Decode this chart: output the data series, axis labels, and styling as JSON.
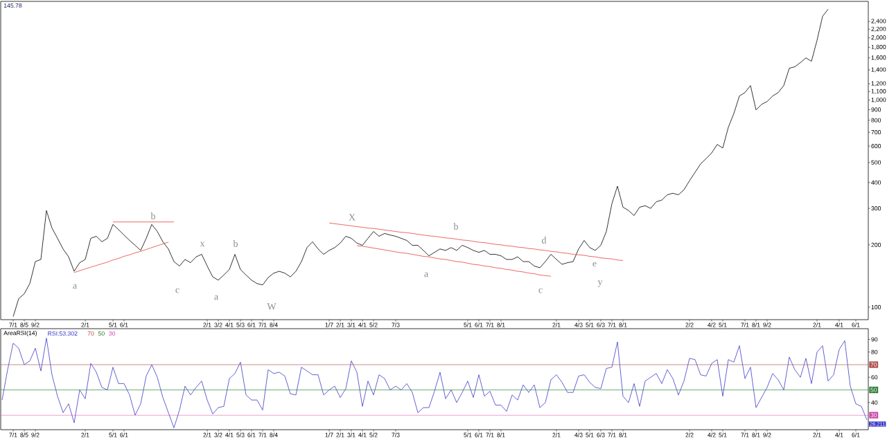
{
  "chart_data": [
    {
      "type": "line",
      "title": "145.78",
      "log": true,
      "ylim": [
        87,
        3000
      ],
      "categories": [
        null,
        null,
        "7/1",
        null,
        "8/5",
        null,
        "9/2",
        null,
        null,
        null,
        null,
        null,
        null,
        null,
        null,
        "2/1",
        null,
        null,
        null,
        null,
        "5/1",
        null,
        "6/1",
        null,
        null,
        null,
        null,
        null,
        null,
        null,
        null,
        null,
        null,
        null,
        null,
        null,
        null,
        "2/1",
        null,
        "3/2",
        null,
        "4/1",
        null,
        "5/3",
        null,
        "6/1",
        null,
        "7/1",
        null,
        "8/4",
        null,
        null,
        null,
        null,
        null,
        null,
        null,
        null,
        null,
        "1/7",
        null,
        "2/1",
        null,
        "3/1",
        null,
        "4/1",
        null,
        "5/2",
        null,
        null,
        null,
        "7/3",
        null,
        null,
        null,
        null,
        null,
        null,
        null,
        null,
        null,
        null,
        null,
        null,
        "5/1",
        null,
        "6/1",
        null,
        "7/1",
        null,
        "8/1",
        null,
        null,
        null,
        null,
        null,
        null,
        null,
        null,
        null,
        "2/1",
        null,
        null,
        null,
        "4/3",
        null,
        "5/1",
        null,
        "6/3",
        null,
        "7/1",
        null,
        "8/1",
        null,
        null,
        null,
        null,
        null,
        null,
        null,
        null,
        null,
        null,
        null,
        "2/2",
        null,
        null,
        null,
        "4/2",
        null,
        "5/1",
        null,
        null,
        null,
        "7/1",
        null,
        "8/1",
        null,
        "9/2",
        null,
        null,
        null,
        null,
        null,
        null,
        null,
        null,
        "2/1",
        null,
        null,
        null,
        "4/1",
        null,
        null,
        "6/1",
        null,
        null
      ],
      "yticks": [
        100,
        200,
        300,
        400,
        500,
        600,
        700,
        800,
        900,
        {
          "value": 1000,
          "label": "1,000"
        },
        {
          "value": 1100,
          "label": "1,100"
        },
        {
          "value": 1200,
          "label": "1,200"
        },
        {
          "value": 1400,
          "label": "1,400"
        },
        {
          "value": 1600,
          "label": "1,600"
        },
        {
          "value": 1800,
          "label": "1,800"
        },
        {
          "value": 2000,
          "label": "2,000"
        },
        {
          "value": 2200,
          "label": "2,200"
        },
        {
          "value": 2400,
          "label": "2,400"
        }
      ],
      "series": [
        {
          "color": "#000000",
          "values": [
            null,
            null,
            90,
            110,
            116,
            130,
            166,
            170,
            293,
            241,
            215,
            191,
            175,
            149,
            164,
            170,
            215,
            220,
            207,
            215,
            251,
            237,
            223,
            210,
            199,
            188,
            215,
            251,
            232,
            207,
            191,
            166,
            158,
            170,
            164,
            175,
            180,
            158,
            140,
            135,
            143,
            152,
            180,
            152,
            143,
            135,
            130,
            128,
            139,
            146,
            149,
            146,
            140,
            149,
            166,
            194,
            207,
            191,
            180,
            188,
            194,
            204,
            220,
            215,
            204,
            199,
            215,
            232,
            220,
            227,
            223,
            220,
            215,
            210,
            199,
            199,
            188,
            177,
            184,
            191,
            188,
            194,
            188,
            199,
            194,
            188,
            184,
            188,
            180,
            180,
            177,
            170,
            170,
            175,
            166,
            166,
            158,
            155,
            166,
            180,
            170,
            161,
            164,
            166,
            191,
            210,
            194,
            188,
            199,
            232,
            316,
            384,
            304,
            293,
            277,
            304,
            309,
            300,
            323,
            329,
            349,
            355,
            349,
            369,
            408,
            448,
            492,
            522,
            556,
            611,
            587,
            739,
            862,
            1047,
            1088,
            1176,
            897,
            954,
            985,
            1047,
            1088,
            1176,
            1426,
            1450,
            1518,
            1600,
            1541,
            1944,
            2540,
            2750,
            null,
            null,
            null,
            null,
            null,
            null,
            null
          ]
        },
        {
          "type": "line",
          "color": "#e8413c",
          "values": [
            null,
            null,
            null,
            null,
            null,
            null,
            null,
            null,
            null,
            null,
            null,
            null,
            null,
            147,
            150,
            153,
            156,
            159,
            162,
            165,
            169,
            172,
            176,
            179,
            183,
            186,
            190,
            194,
            198,
            202,
            206,
            null,
            null,
            null,
            null,
            null,
            null,
            null,
            null,
            null,
            null,
            null,
            null,
            null,
            null,
            null,
            null,
            null,
            null,
            null,
            null,
            null,
            null,
            null,
            null,
            null,
            null,
            null,
            null,
            null,
            null,
            null,
            null,
            null,
            null,
            null,
            null,
            null,
            null,
            null,
            null,
            null,
            null,
            null,
            null,
            null,
            null,
            null,
            null,
            null,
            null,
            null,
            null,
            null,
            null,
            null,
            null,
            null,
            null,
            null,
            null,
            null,
            null,
            null,
            null,
            null,
            null,
            null,
            null,
            null,
            null,
            null,
            null,
            null,
            null,
            null,
            null,
            null,
            null,
            null,
            null,
            null,
            null,
            null,
            null,
            null,
            null,
            null,
            null,
            null,
            null,
            null,
            null,
            null,
            null,
            null,
            null,
            null,
            null,
            null,
            null,
            null,
            null,
            null,
            null,
            null,
            null,
            null,
            null,
            null,
            null,
            null,
            null,
            null,
            null,
            null,
            null,
            null,
            null,
            null,
            null,
            null,
            null,
            null,
            null,
            null,
            null
          ]
        },
        {
          "type": "line",
          "color": "#e8413c",
          "values": [
            null,
            null,
            null,
            null,
            null,
            null,
            null,
            null,
            null,
            null,
            null,
            null,
            null,
            null,
            null,
            null,
            null,
            null,
            null,
            null,
            258,
            258,
            258,
            258,
            258,
            258,
            258,
            258,
            258,
            258,
            258,
            258,
            null,
            null,
            null,
            null,
            null,
            null,
            null,
            null,
            null,
            null,
            null,
            null,
            null,
            null,
            null,
            null,
            null,
            null,
            null,
            null,
            null,
            null,
            null,
            null,
            null,
            null,
            null,
            null,
            null,
            null,
            null,
            null,
            null,
            null,
            null,
            null,
            null,
            null,
            null,
            null,
            null,
            null,
            null,
            null,
            null,
            null,
            null,
            null,
            null,
            null,
            null,
            null,
            null,
            null,
            null,
            null,
            null,
            null,
            null,
            null,
            null,
            null,
            null,
            null,
            null,
            null,
            null,
            null,
            null,
            null,
            null,
            null,
            null,
            null,
            null,
            null,
            null,
            null,
            null,
            null,
            null,
            null,
            null,
            null,
            null,
            null,
            null,
            null,
            null,
            null,
            null,
            null,
            null,
            null,
            null,
            null,
            null,
            null,
            null,
            null,
            null,
            null,
            null,
            null,
            null,
            null,
            null,
            null,
            null,
            null,
            null,
            null,
            null,
            null,
            null,
            null,
            null,
            null,
            null,
            null,
            null,
            null,
            null,
            null,
            null
          ]
        },
        {
          "type": "line",
          "color": "#e8413c",
          "values": [
            null,
            null,
            null,
            null,
            null,
            null,
            null,
            null,
            null,
            null,
            null,
            null,
            null,
            null,
            null,
            null,
            null,
            null,
            null,
            null,
            null,
            null,
            null,
            null,
            null,
            null,
            null,
            null,
            null,
            null,
            null,
            null,
            null,
            null,
            null,
            null,
            null,
            null,
            null,
            null,
            null,
            null,
            null,
            null,
            null,
            null,
            null,
            null,
            null,
            null,
            null,
            null,
            null,
            null,
            null,
            null,
            null,
            null,
            null,
            255,
            253,
            251,
            249,
            247,
            245,
            243,
            241,
            240,
            238,
            236,
            234,
            232,
            230,
            229,
            227,
            225,
            223,
            221,
            220,
            218,
            216,
            215,
            213,
            211,
            210,
            208,
            206,
            205,
            203,
            201,
            200,
            198,
            197,
            195,
            194,
            192,
            191,
            189,
            188,
            186,
            185,
            183,
            182,
            180,
            179,
            178,
            176,
            175,
            173,
            172,
            171,
            169,
            168,
            null,
            null,
            null,
            null,
            null,
            null,
            null,
            null,
            null,
            null,
            null,
            null,
            null,
            null,
            null,
            null,
            null,
            null,
            null,
            null,
            null,
            null,
            null,
            null,
            null,
            null,
            null,
            null,
            null,
            null,
            null,
            null,
            null,
            null,
            null,
            null,
            null,
            null,
            null,
            null,
            null,
            null,
            null,
            null
          ]
        },
        {
          "type": "line",
          "color": "#e8413c",
          "values": [
            null,
            null,
            null,
            null,
            null,
            null,
            null,
            null,
            null,
            null,
            null,
            null,
            null,
            null,
            null,
            null,
            null,
            null,
            null,
            null,
            null,
            null,
            null,
            null,
            null,
            null,
            null,
            null,
            null,
            null,
            null,
            null,
            null,
            null,
            null,
            null,
            null,
            null,
            null,
            null,
            null,
            null,
            null,
            null,
            null,
            null,
            null,
            null,
            null,
            null,
            null,
            null,
            null,
            null,
            null,
            null,
            null,
            null,
            null,
            null,
            null,
            null,
            null,
            null,
            198,
            197,
            195,
            193,
            191,
            189,
            187,
            185,
            183,
            182,
            180,
            178,
            176,
            175,
            173,
            171,
            170,
            168,
            166,
            165,
            163,
            161,
            160,
            158,
            157,
            155,
            154,
            152,
            151,
            149,
            148,
            146,
            145,
            143,
            142,
            141,
            null,
            null,
            null,
            null,
            null,
            null,
            null,
            null,
            null,
            null,
            null,
            null,
            null,
            null,
            null,
            null,
            null,
            null,
            null,
            null,
            null,
            null,
            null,
            null,
            null,
            null,
            null,
            null,
            null,
            null,
            null,
            null,
            null,
            null,
            null,
            null,
            null,
            null,
            null,
            null,
            null,
            null,
            null,
            null,
            null,
            null,
            null,
            null,
            null,
            null,
            null,
            null,
            null,
            null,
            null,
            null,
            null
          ]
        }
      ],
      "annotations": [
        "a",
        "b",
        "c",
        "x",
        "a",
        "b",
        "W",
        "X",
        "a",
        "b",
        "c",
        "d",
        "e",
        "y"
      ]
    },
    {
      "type": "line",
      "title": "AreaRSI(14)",
      "legend": "top left",
      "ylim": [
        18.5,
        98.5
      ],
      "categories": [
        null,
        null,
        "7/1",
        null,
        "8/5",
        null,
        "9/2",
        null,
        null,
        null,
        null,
        null,
        null,
        null,
        null,
        "2/1",
        null,
        null,
        null,
        null,
        "5/1",
        null,
        "6/1",
        null,
        null,
        null,
        null,
        null,
        null,
        null,
        null,
        null,
        null,
        null,
        null,
        null,
        null,
        "2/1",
        null,
        "3/2",
        null,
        "4/1",
        null,
        "5/3",
        null,
        "6/1",
        null,
        "7/1",
        null,
        "8/4",
        null,
        null,
        null,
        null,
        null,
        null,
        null,
        null,
        null,
        "1/7",
        null,
        "2/1",
        null,
        "3/1",
        null,
        "4/1",
        null,
        "5/2",
        null,
        null,
        null,
        "7/3",
        null,
        null,
        null,
        null,
        null,
        null,
        null,
        null,
        null,
        null,
        null,
        null,
        "5/1",
        null,
        "6/1",
        null,
        "7/1",
        null,
        "8/1",
        null,
        null,
        null,
        null,
        null,
        null,
        null,
        null,
        null,
        "2/1",
        null,
        null,
        null,
        "4/3",
        null,
        "5/1",
        null,
        "6/3",
        null,
        "7/1",
        null,
        "8/1",
        null,
        null,
        null,
        null,
        null,
        null,
        null,
        null,
        null,
        null,
        null,
        "2/2",
        null,
        null,
        null,
        "4/2",
        null,
        "5/1",
        null,
        null,
        null,
        "7/1",
        null,
        "8/1",
        null,
        "9/2",
        null,
        null,
        null,
        null,
        null,
        null,
        null,
        null,
        "2/1",
        null,
        null,
        null,
        "4/1",
        null,
        null,
        "6/1",
        null,
        null
      ],
      "yticks": [
        40,
        60,
        80,
        90
      ],
      "series": [
        {
          "name": "RSI:53.302",
          "color": "#3a3ac8",
          "values": [
            42,
            66,
            87,
            83,
            70,
            73,
            83,
            65,
            91,
            62,
            45,
            32,
            39,
            24,
            50,
            43,
            71,
            64,
            52,
            50,
            68,
            55,
            55,
            46,
            30,
            39,
            61,
            70,
            60,
            44,
            32,
            20,
            34,
            53,
            46,
            52,
            57,
            42,
            31,
            36,
            37,
            59,
            63,
            72,
            46,
            42,
            42,
            34,
            66,
            63,
            64,
            61,
            47,
            46,
            68,
            65,
            62,
            62,
            46,
            50,
            53,
            44,
            51,
            73,
            64,
            37,
            57,
            46,
            62,
            59,
            50,
            53,
            50,
            55,
            48,
            32,
            36,
            36,
            49,
            64,
            43,
            50,
            40,
            48,
            57,
            44,
            62,
            45,
            49,
            38,
            38,
            33,
            46,
            42,
            54,
            48,
            54,
            36,
            40,
            58,
            62,
            56,
            48,
            48,
            61,
            62,
            56,
            52,
            51,
            67,
            68,
            88,
            45,
            40,
            55,
            37,
            57,
            60,
            63,
            55,
            66,
            59,
            46,
            57,
            75,
            74,
            62,
            61,
            71,
            74,
            45,
            74,
            72,
            85,
            59,
            68,
            36,
            44,
            52,
            63,
            58,
            50,
            76,
            66,
            60,
            75,
            55,
            80,
            85,
            57,
            62,
            82,
            89,
            53,
            39,
            37,
            26.211
          ]
        }
      ],
      "ref_lines": [
        {
          "axis": "y",
          "value": 70,
          "label": "70",
          "color": "#b0504a"
        },
        {
          "axis": "y",
          "value": 50,
          "label": "50",
          "color": "#2e7d32"
        },
        {
          "axis": "y",
          "value": 30,
          "label": "30",
          "color": "#cc44aa"
        }
      ],
      "annotations": [
        "26.211"
      ]
    }
  ]
}
